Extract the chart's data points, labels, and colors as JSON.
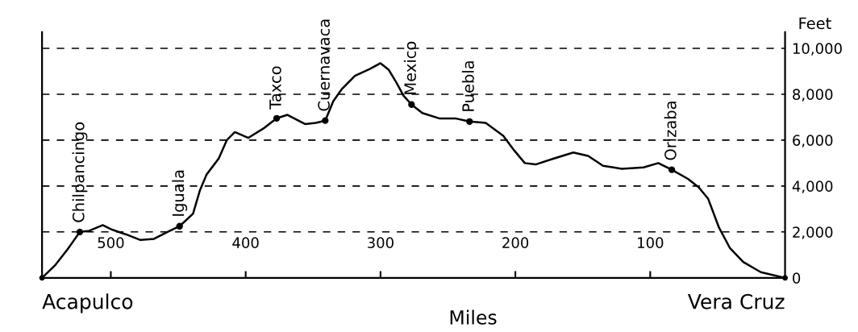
{
  "chart_data": {
    "type": "line",
    "xlabel": "Miles",
    "ylabel": "Feet",
    "color": "#000000",
    "line_style": "solid",
    "marker": "none",
    "grid": "y",
    "x": [
      551,
      541,
      532,
      523,
      516,
      506,
      499,
      489,
      478,
      468,
      458,
      449,
      439,
      434,
      429,
      420,
      414,
      408,
      398,
      387,
      377,
      369,
      356,
      348,
      341,
      335,
      329,
      319,
      308,
      300,
      294,
      288,
      283,
      277,
      269,
      256,
      244,
      234,
      222,
      209,
      201,
      193,
      185,
      172,
      157,
      146,
      135,
      121,
      105,
      94,
      84,
      72,
      64,
      57,
      49,
      41,
      31,
      18,
      0
    ],
    "values": [
      0,
      570,
      1250,
      2000,
      2050,
      2300,
      2100,
      1900,
      1650,
      1700,
      2000,
      2250,
      2800,
      3800,
      4500,
      5200,
      6000,
      6350,
      6100,
      6500,
      6950,
      7100,
      6700,
      6750,
      6850,
      7700,
      8200,
      8800,
      9100,
      9350,
      9070,
      8480,
      7940,
      7550,
      7180,
      6940,
      6940,
      6810,
      6750,
      6190,
      5560,
      5000,
      4940,
      5190,
      5460,
      5310,
      4880,
      4750,
      4810,
      5000,
      4710,
      4310,
      3940,
      3440,
      2190,
      1310,
      690,
      250,
      0
    ],
    "xlim": [
      551,
      0
    ],
    "xticks": [
      500,
      400,
      300,
      200,
      100
    ],
    "ylim": [
      0,
      10700
    ],
    "yticks": [
      0,
      {
        "value": 2000,
        "label": "2,000"
      },
      {
        "value": 4000,
        "label": "4,000"
      },
      {
        "value": 6000,
        "label": "6,000"
      },
      {
        "value": 8000,
        "label": "8,000"
      },
      {
        "value": 10000,
        "label": "10,000"
      }
    ],
    "annotations": [
      {
        "text": "Acapulco",
        "x": 551,
        "y": 0
      },
      {
        "text": "Chilpancingo",
        "x": 523,
        "y": 2000
      },
      {
        "text": "Iguala",
        "x": 449,
        "y": 2250
      },
      {
        "text": "Taxco",
        "x": 377,
        "y": 6950
      },
      {
        "text": "Cuernavaca",
        "x": 341,
        "y": 6850
      },
      {
        "text": "Mexico",
        "x": 277,
        "y": 7550
      },
      {
        "text": "Puebla",
        "x": 234,
        "y": 6810
      },
      {
        "text": "Orizaba",
        "x": 84,
        "y": 4710
      },
      {
        "text": "Vera Cruz",
        "x": 0,
        "y": 0
      }
    ]
  }
}
